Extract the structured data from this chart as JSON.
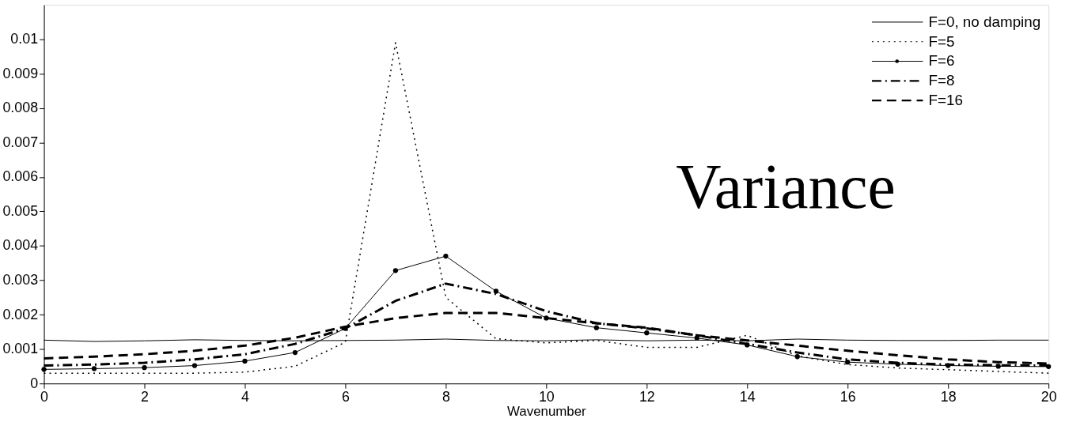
{
  "chart_data": {
    "type": "line",
    "xlabel": "Wavenumber",
    "annotations": [
      "Variance"
    ],
    "x": [
      0,
      1,
      2,
      3,
      4,
      5,
      6,
      7,
      8,
      9,
      10,
      11,
      12,
      13,
      14,
      15,
      16,
      17,
      18,
      19,
      20
    ],
    "xlim": [
      0,
      20
    ],
    "xticks": [
      0,
      2,
      4,
      6,
      8,
      10,
      12,
      14,
      16,
      18,
      20
    ],
    "ylim": [
      0,
      0.011
    ],
    "yticks": [
      0,
      0.001,
      0.002,
      0.003,
      0.004,
      0.005,
      0.006,
      0.007,
      0.008,
      0.009,
      0.01
    ],
    "grid": false,
    "legend": "top right",
    "series": [
      {
        "name": "F=0, no damping",
        "color": "#000000",
        "line_style": "solid",
        "marker": "none",
        "values": [
          0.00126,
          0.00122,
          0.00124,
          0.00127,
          0.00125,
          0.00124,
          0.00125,
          0.00126,
          0.00129,
          0.00125,
          0.00124,
          0.00127,
          0.00124,
          0.00126,
          0.00124,
          0.00129,
          0.00126,
          0.00125,
          0.00125,
          0.00126,
          0.00126
        ]
      },
      {
        "name": "F=5",
        "color": "#000000",
        "line_style": "dotted",
        "marker": "none",
        "values": [
          0.0003,
          0.0003,
          0.0003,
          0.0003,
          0.00033,
          0.0005,
          0.0012,
          0.0099,
          0.0025,
          0.0013,
          0.00118,
          0.00125,
          0.00105,
          0.00105,
          0.0014,
          0.0008,
          0.00055,
          0.00045,
          0.0004,
          0.00035,
          0.0003
        ]
      },
      {
        "name": "F=6",
        "color": "#000000",
        "line_style": "solid",
        "marker": "circle",
        "values": [
          0.00041,
          0.00043,
          0.00046,
          0.00052,
          0.00065,
          0.0009,
          0.0016,
          0.00328,
          0.0037,
          0.00268,
          0.0019,
          0.00162,
          0.00147,
          0.00132,
          0.00112,
          0.00078,
          0.00062,
          0.00056,
          0.00052,
          0.0005,
          0.00049
        ]
      },
      {
        "name": "F=8",
        "color": "#000000",
        "line_style": "dashdot",
        "marker": "none",
        "values": [
          0.00052,
          0.00055,
          0.0006,
          0.0007,
          0.00085,
          0.00115,
          0.0016,
          0.0024,
          0.0029,
          0.0026,
          0.0021,
          0.00175,
          0.0016,
          0.0014,
          0.00115,
          0.0009,
          0.0007,
          0.0006,
          0.00055,
          0.00053,
          0.00052
        ]
      },
      {
        "name": "F=16",
        "color": "#000000",
        "line_style": "dashed",
        "marker": "none",
        "values": [
          0.00073,
          0.00078,
          0.00085,
          0.00095,
          0.0011,
          0.00133,
          0.00165,
          0.0019,
          0.00205,
          0.00205,
          0.0019,
          0.00175,
          0.00162,
          0.0014,
          0.00125,
          0.0011,
          0.00095,
          0.00082,
          0.0007,
          0.00062,
          0.00058
        ]
      }
    ]
  }
}
